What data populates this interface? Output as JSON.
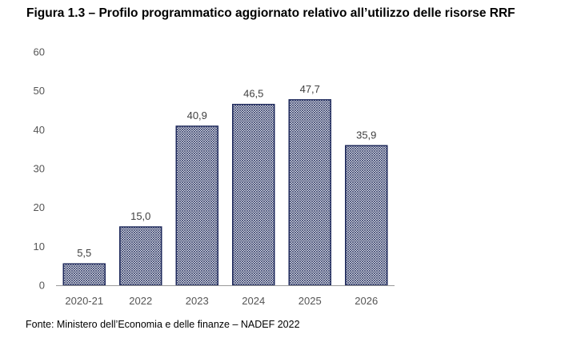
{
  "title": "Figura 1.3 – Profilo programmatico aggiornato relativo all’utilizzo delle risorse RRF",
  "source": "Fonte: Ministero dell’Economia e delle finanze – NADEF 2022",
  "chart_data": {
    "type": "bar",
    "title": "Figura 1.3 – Profilo programmatico aggiornato relativo all’utilizzo delle risorse RRF",
    "categories": [
      "2020-21",
      "2022",
      "2023",
      "2024",
      "2025",
      "2026"
    ],
    "values": [
      5.5,
      15.0,
      40.9,
      46.5,
      47.7,
      35.9
    ],
    "data_labels": [
      "5,5",
      "15,0",
      "40,9",
      "46,5",
      "47,7",
      "35,9"
    ],
    "y_ticks": [
      "0",
      "10",
      "20",
      "30",
      "40",
      "50",
      "60"
    ],
    "ylim": [
      0,
      60
    ],
    "xlabel": "",
    "ylabel": "",
    "grid": false,
    "legend": "none",
    "bar_fill": "hatched",
    "bar_color": "#1f2a5c"
  }
}
